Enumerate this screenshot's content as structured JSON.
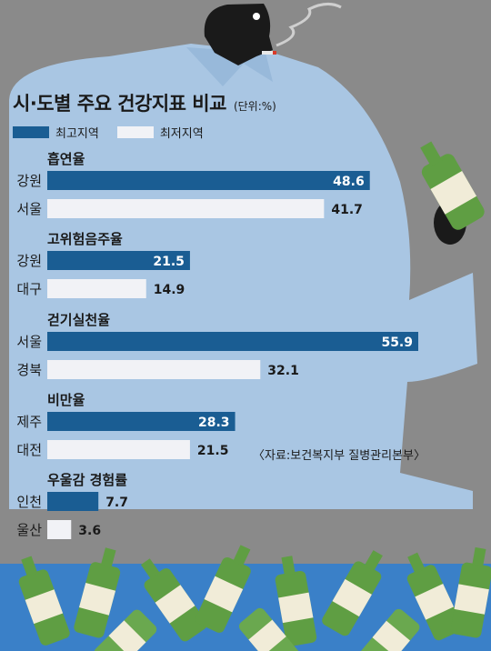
{
  "header": {
    "title": "시·도별 주요 건강지표 비교",
    "unit": "(단위:%)"
  },
  "legend": {
    "highest_label": "최고지역",
    "lowest_label": "최저지역"
  },
  "colors": {
    "highest": "#1a5d93",
    "lowest": "#f1f2f6",
    "background": "#8a8a8a",
    "figure": "#a9c6e3",
    "bottle": "#5f9e43"
  },
  "source": "〈자료:보건복지부 질병관리본부〉",
  "chart_data": {
    "type": "bar",
    "title": "시·도별 주요 건강지표 비교",
    "unit": "(단위:%)",
    "orientation": "horizontal",
    "legend_position": "top-left",
    "xlim": [
      0,
      60
    ],
    "series_names": [
      "최고지역",
      "최저지역"
    ],
    "groups": [
      {
        "name": "흡연율",
        "bars": [
          {
            "region": "강원",
            "value": 48.6,
            "label": "48.6",
            "type": "highest"
          },
          {
            "region": "서울",
            "value": 41.7,
            "label": "41.7",
            "type": "lowest"
          }
        ]
      },
      {
        "name": "고위험음주율",
        "bars": [
          {
            "region": "강원",
            "value": 21.5,
            "label": "21.5",
            "type": "highest"
          },
          {
            "region": "대구",
            "value": 14.9,
            "label": "14.9",
            "type": "lowest"
          }
        ]
      },
      {
        "name": "걷기실천율",
        "bars": [
          {
            "region": "서울",
            "value": 55.9,
            "label": "55.9",
            "type": "highest"
          },
          {
            "region": "경북",
            "value": 32.1,
            "label": "32.1",
            "type": "lowest"
          }
        ]
      },
      {
        "name": "비만율",
        "bars": [
          {
            "region": "제주",
            "value": 28.3,
            "label": "28.3",
            "type": "highest"
          },
          {
            "region": "대전",
            "value": 21.5,
            "label": "21.5",
            "type": "lowest"
          }
        ]
      },
      {
        "name": "우울감 경험률",
        "bars": [
          {
            "region": "인천",
            "value": 7.7,
            "label": "7.7",
            "type": "highest"
          },
          {
            "region": "울산",
            "value": 3.6,
            "label": "3.6",
            "type": "lowest"
          }
        ]
      }
    ]
  }
}
